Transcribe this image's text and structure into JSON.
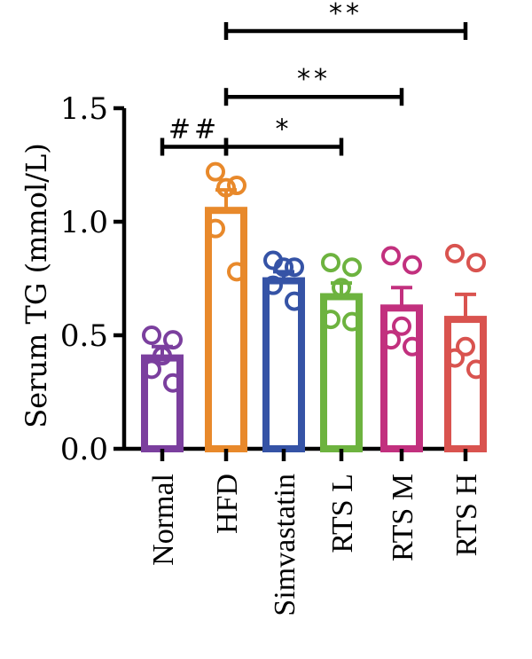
{
  "chart_data": {
    "type": "bar",
    "ylabel": "Serum TG (mmol/L)",
    "xlabel": "",
    "ylim": [
      0,
      1.5
    ],
    "yticks": [
      "0.0",
      "0.5",
      "1.0",
      "1.5"
    ],
    "categories": [
      "Normal",
      "HFD",
      "Simvastatin",
      "RTS L",
      "RTS M",
      "RTS H"
    ],
    "values": [
      0.4,
      1.05,
      0.74,
      0.67,
      0.62,
      0.57
    ],
    "sem": [
      0.05,
      0.09,
      0.04,
      0.06,
      0.09,
      0.11
    ],
    "colors": [
      "#7b3f9e",
      "#e8892b",
      "#3553a6",
      "#6db33f",
      "#c2307e",
      "#d9534f"
    ],
    "points": [
      [
        0.5,
        0.48,
        0.41,
        0.35,
        0.29
      ],
      [
        1.22,
        1.16,
        1.15,
        0.97,
        0.78
      ],
      [
        0.83,
        0.8,
        0.8,
        0.72,
        0.65
      ],
      [
        0.82,
        0.8,
        0.71,
        0.57,
        0.56
      ],
      [
        0.85,
        0.81,
        0.54,
        0.48,
        0.45
      ],
      [
        0.86,
        0.82,
        0.45,
        0.4,
        0.35
      ]
    ],
    "annotations": [
      {
        "label": "##",
        "from": 0,
        "to": 1,
        "y": 1.33
      },
      {
        "label": "*",
        "from": 1,
        "to": 3,
        "y": 1.33
      },
      {
        "label": "**",
        "from": 1,
        "to": 4,
        "y": 1.55
      },
      {
        "label": "**",
        "from": 1,
        "to": 5,
        "y": 1.84
      }
    ],
    "grid": false
  }
}
